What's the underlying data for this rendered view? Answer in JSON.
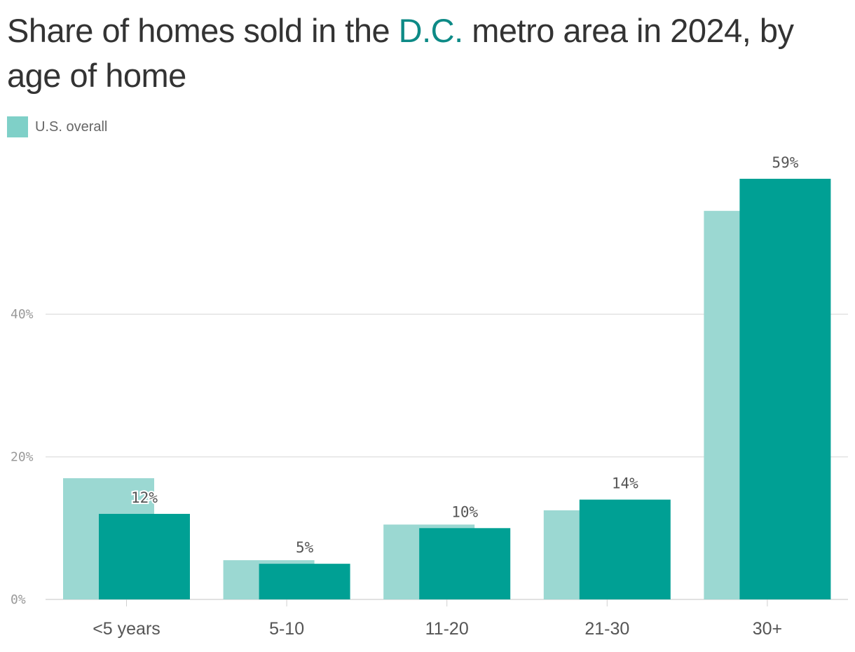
{
  "title": {
    "before": "Share of homes sold in the ",
    "highlight": "D.C.",
    "after": " metro area in 2024, by age of home"
  },
  "legend": {
    "label": "U.S. overall"
  },
  "colors": {
    "us": "#9bd8d2",
    "dc": "#00a094",
    "highlight": "#0d8a86"
  },
  "chart_data": {
    "type": "bar",
    "categories": [
      "<5 years",
      "5-10",
      "11-20",
      "21-30",
      "30+"
    ],
    "series": [
      {
        "name": "U.S. overall",
        "values": [
          17,
          5.5,
          10.5,
          12.5,
          54.5
        ]
      },
      {
        "name": "",
        "values": [
          12,
          5,
          10,
          14,
          59
        ]
      }
    ],
    "value_labels": [
      "12%",
      "5%",
      "10%",
      "14%",
      "59%"
    ],
    "ylim": [
      0,
      59
    ],
    "yticks": [
      0,
      20,
      40
    ],
    "ytick_labels": [
      "0%",
      "20%",
      "40%"
    ],
    "grid": true,
    "legend_position": "top-left"
  }
}
